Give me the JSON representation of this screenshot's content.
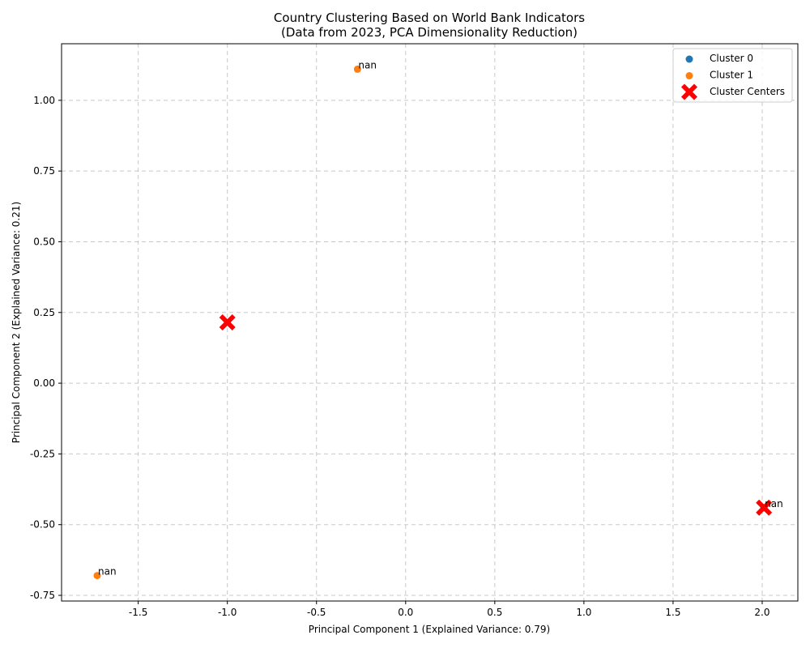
{
  "chart_data": {
    "type": "scatter",
    "title": "Country Clustering Based on World Bank Indicators",
    "subtitle": "(Data from 2023, PCA Dimensionality Reduction)",
    "xlabel": "Principal Component 1 (Explained Variance: 0.79)",
    "ylabel": "Principal Component 2 (Explained Variance: 0.21)",
    "xlim": [
      -1.93,
      2.2
    ],
    "ylim": [
      -0.77,
      1.2
    ],
    "xticks": [
      -1.5,
      -1.0,
      -0.5,
      0.0,
      0.5,
      1.0,
      1.5,
      2.0
    ],
    "xtick_labels": [
      "-1.5",
      "-1.0",
      "-0.5",
      "0.0",
      "0.5",
      "1.0",
      "1.5",
      "2.0"
    ],
    "yticks": [
      -0.75,
      -0.5,
      -0.25,
      0.0,
      0.25,
      0.5,
      0.75,
      1.0
    ],
    "ytick_labels": [
      "-0.75",
      "-0.50",
      "-0.25",
      "0.00",
      "0.25",
      "0.50",
      "0.75",
      "1.00"
    ],
    "grid": true,
    "legend_position": "top-right",
    "series": [
      {
        "name": "Cluster 0",
        "color": "#1f77b4",
        "marker": "circle",
        "points": [
          {
            "x": 2.01,
            "y": -0.44,
            "label": "nan"
          }
        ]
      },
      {
        "name": "Cluster 1",
        "color": "#ff7f0e",
        "marker": "circle",
        "points": [
          {
            "x": -0.27,
            "y": 1.11,
            "label": "nan"
          },
          {
            "x": -1.73,
            "y": -0.68,
            "label": "nan"
          }
        ]
      },
      {
        "name": "Cluster Centers",
        "color": "#ff0000",
        "marker": "x",
        "points": [
          {
            "x": -1.0,
            "y": 0.215
          },
          {
            "x": 2.01,
            "y": -0.44
          }
        ]
      }
    ]
  }
}
